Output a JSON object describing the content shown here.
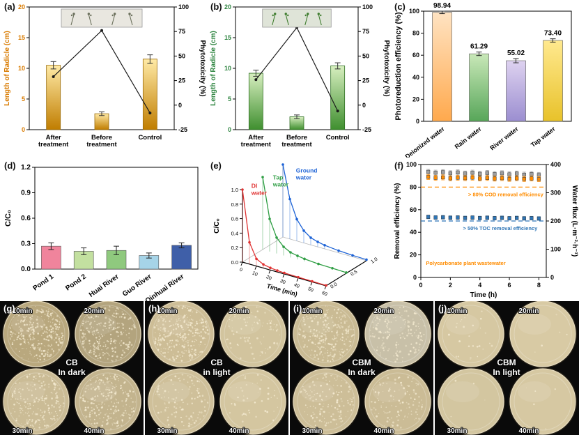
{
  "chart_data": [
    {
      "id": "a",
      "label": "(a)",
      "type": "bar+line",
      "left_axis": {
        "title": "Length of Radicle (cm)",
        "color": "#d97b00",
        "min": 0,
        "max": 20,
        "ticks": [
          "0",
          "5",
          "10",
          "15",
          "20"
        ]
      },
      "right_axis": {
        "title": "Phytotoxicity (%)",
        "color": "#000000",
        "min": -25,
        "max": 100,
        "ticks": [
          "-25",
          "0",
          "25",
          "50",
          "75",
          "100"
        ]
      },
      "categories": [
        "After treatment",
        "Before treatment",
        "Control"
      ],
      "bars": {
        "values": [
          10.5,
          2.6,
          11.5
        ],
        "errors": [
          0.6,
          0.3,
          0.7
        ],
        "color_top": "#ffeaa6",
        "color_bottom": "#c07d00",
        "edge": "#9a6a08"
      },
      "line": {
        "name": "Phytotoxicity",
        "values": [
          29,
          76,
          -8
        ],
        "color": "#1a1a1a"
      },
      "inset": {
        "bg": "#e9e7e0",
        "plant_color": "#6b705c"
      }
    },
    {
      "id": "b",
      "label": "(b)",
      "type": "bar+line",
      "left_axis": {
        "title": "Length of Radicle (cm)",
        "color": "#2e8540",
        "min": 0,
        "max": 20,
        "ticks": [
          "0",
          "5",
          "10",
          "15",
          "20"
        ]
      },
      "right_axis": {
        "title": "Phytotoxicity (%)",
        "color": "#000000",
        "min": -25,
        "max": 100,
        "ticks": [
          "-25",
          "0",
          "25",
          "50",
          "75",
          "100"
        ]
      },
      "categories": [
        "After treatment",
        "Before treatment",
        "Control"
      ],
      "bars": {
        "values": [
          9.2,
          2.1,
          10.4
        ],
        "errors": [
          0.5,
          0.3,
          0.5
        ],
        "color_top": "#d8efc0",
        "color_bottom": "#3f8f2f",
        "edge": "#2e6e22"
      },
      "line": {
        "name": "Phytotoxicity",
        "values": [
          26,
          79,
          -6
        ],
        "color": "#1a1a1a"
      },
      "inset": {
        "bg": "#dfe4d8",
        "plant_color": "#3f7d2f"
      }
    },
    {
      "id": "c",
      "label": "(c)",
      "type": "bar",
      "y_axis": {
        "title": "Photoreduction efficiency (%)",
        "min": 0,
        "max": 100,
        "ticks": [
          "0",
          "20",
          "40",
          "60",
          "80",
          "100"
        ]
      },
      "categories": [
        "Deionized water",
        "Rain water",
        "River water",
        "Tap water"
      ],
      "values": [
        98.94,
        61.29,
        55.02,
        73.4
      ],
      "value_labels": [
        "98.94",
        "61.29",
        "55.02",
        "73.40"
      ],
      "errors": [
        1.2,
        1.6,
        1.9,
        1.5
      ],
      "bar_colors": [
        {
          "top": "#ffe3c2",
          "bottom": "#ffa94d"
        },
        {
          "top": "#c9e8b8",
          "bottom": "#57a659"
        },
        {
          "top": "#ded2f0",
          "bottom": "#9b8ed0"
        },
        {
          "top": "#ffe98f",
          "bottom": "#e8c22a"
        }
      ]
    },
    {
      "id": "d",
      "label": "(d)",
      "type": "bar",
      "y_axis": {
        "title": "C/C₀",
        "min": 0,
        "max": 1.2,
        "ticks": [
          "0.0",
          "0.3",
          "0.6",
          "0.9",
          "1.2"
        ]
      },
      "categories": [
        "Pond 1",
        "Pond 2",
        "Huai River",
        "Guo River",
        "Qinhuai River"
      ],
      "values": [
        0.27,
        0.21,
        0.22,
        0.16,
        0.28
      ],
      "errors": [
        0.04,
        0.04,
        0.05,
        0.03,
        0.03
      ],
      "bar_colors": [
        "#f0849c",
        "#c3e0a0",
        "#8fc97e",
        "#a6d4e8",
        "#3f5fa8"
      ]
    },
    {
      "id": "e",
      "label": "(e)",
      "type": "line3d",
      "v_axis": {
        "title": "C/C₀",
        "min": 0,
        "max": 1,
        "ticks": [
          "0.0",
          "0.2",
          "0.4",
          "0.6",
          "0.8",
          "1.0"
        ]
      },
      "t_axis": {
        "title": "Time (min)",
        "min": 0,
        "max": 60,
        "ticks": [
          "0",
          "10",
          "20",
          "30",
          "40",
          "50",
          "60"
        ]
      },
      "depth_ticks": [
        "0.0",
        "0.5",
        "1.0"
      ],
      "series": [
        {
          "name": "DI water",
          "color": "#e03131",
          "depth": 0,
          "t": [
            0,
            5,
            10,
            15,
            20,
            25,
            30,
            40,
            50,
            60
          ],
          "v": [
            1.0,
            0.3,
            0.1,
            0.05,
            0.03,
            0.02,
            0.015,
            0.01,
            0.008,
            0.005
          ]
        },
        {
          "name": "Tap water",
          "color": "#2f9e44",
          "depth": 0.5,
          "t": [
            0,
            5,
            10,
            15,
            20,
            25,
            30,
            40,
            50,
            60
          ],
          "v": [
            1.0,
            0.45,
            0.22,
            0.12,
            0.07,
            0.05,
            0.035,
            0.02,
            0.015,
            0.01
          ]
        },
        {
          "name": "Ground water",
          "color": "#1c62d6",
          "depth": 1,
          "t": [
            0,
            5,
            10,
            15,
            20,
            25,
            30,
            40,
            50,
            60
          ],
          "v": [
            1.0,
            0.55,
            0.3,
            0.17,
            0.1,
            0.07,
            0.05,
            0.03,
            0.02,
            0.015
          ]
        }
      ]
    },
    {
      "id": "f",
      "label": "(f)",
      "type": "scatter",
      "left_axis": {
        "title": "Removal efficiency (%)",
        "min": 0,
        "max": 100,
        "ticks": [
          "0",
          "20",
          "40",
          "60",
          "80",
          "100"
        ]
      },
      "right_axis": {
        "title": "Water flux (L·m⁻²·h⁻¹)",
        "min": 0,
        "max": 400,
        "ticks": [
          "0",
          "100",
          "200",
          "300",
          "400"
        ]
      },
      "x_axis": {
        "title": "Time (h)",
        "min": 0,
        "max": 8.5,
        "ticks": [
          "0",
          "2",
          "4",
          "6",
          "8"
        ]
      },
      "reference_lines": [
        {
          "value": 80,
          "axis": "left",
          "color": "#ff8c00"
        },
        {
          "value": 50,
          "axis": "left",
          "color": "#2e75b6"
        }
      ],
      "annotations": [
        {
          "text": "> 80% COD removal efficiency",
          "color": "#ff8c00",
          "x": 8.3,
          "y": 72
        },
        {
          "text": "> 50% TOC removal efficiency",
          "color": "#2e75b6",
          "x": 7.9,
          "y": 42
        },
        {
          "text": "Polycarbonate plant wastewater",
          "color": "#ff8c00",
          "x": 0.35,
          "y": 11
        }
      ],
      "series": [
        {
          "name": "Water flux",
          "axis": "right",
          "marker": "square",
          "color": "#9e9e9e",
          "err": 9,
          "x": [
            0.5,
            1,
            1.5,
            2,
            2.5,
            3,
            3.5,
            4,
            4.5,
            5,
            5.5,
            6,
            6.5,
            7,
            7.5,
            8
          ],
          "y": [
            374,
            371,
            373,
            369,
            372,
            368,
            371,
            367,
            370,
            366,
            369,
            365,
            368,
            364,
            366,
            363
          ]
        },
        {
          "name": "COD removal",
          "axis": "left",
          "marker": "square",
          "color": "#ff8c00",
          "err": 2.2,
          "x": [
            0.5,
            1,
            1.5,
            2,
            2.5,
            3,
            3.5,
            4,
            4.5,
            5,
            5.5,
            6,
            6.5,
            7,
            7.5,
            8
          ],
          "y": [
            89,
            88.2,
            88.6,
            87.8,
            88.3,
            87.9,
            88.4,
            87.6,
            88.1,
            87.5,
            87.9,
            87.3,
            87.8,
            87.2,
            87.6,
            87.1
          ]
        },
        {
          "name": "TOC removal",
          "axis": "left",
          "marker": "square",
          "color": "#2e75b6",
          "err": 1.6,
          "x": [
            0.5,
            1,
            1.5,
            2,
            2.5,
            3,
            3.5,
            4,
            4.5,
            5,
            5.5,
            6,
            6.5,
            7,
            7.5,
            8
          ],
          "y": [
            53.6,
            53.1,
            53.3,
            52.9,
            53.1,
            52.7,
            53.0,
            52.6,
            52.9,
            52.5,
            52.8,
            52.4,
            52.7,
            52.3,
            52.5,
            52.2
          ]
        }
      ]
    }
  ],
  "photo_panels": [
    {
      "id": "g",
      "label": "(g)",
      "line1": "CB",
      "line2": "In dark",
      "dishes": [
        {
          "time": "10min",
          "density": 320,
          "tone": "#b9a87e"
        },
        {
          "time": "20min",
          "density": 260,
          "tone": "#b3a47e"
        },
        {
          "time": "30min",
          "density": 210,
          "tone": "#cbbc96"
        },
        {
          "time": "40min",
          "density": 240,
          "tone": "#c3b48e"
        }
      ]
    },
    {
      "id": "h",
      "label": "(h)",
      "line1": "CB",
      "line2": "in light",
      "dishes": [
        {
          "time": "10min",
          "density": 300,
          "tone": "#cdbd96"
        },
        {
          "time": "20min",
          "density": 90,
          "tone": "#d2c49e"
        },
        {
          "time": "30min",
          "density": 120,
          "tone": "#cfc09a"
        },
        {
          "time": "40min",
          "density": 45,
          "tone": "#d4c6a0"
        }
      ]
    },
    {
      "id": "i",
      "label": "(i)",
      "line1": "CBM",
      "line2": "In dark",
      "dishes": [
        {
          "time": "10min",
          "density": 280,
          "tone": "#cabb94"
        },
        {
          "time": "20min",
          "density": 180,
          "tone": "#c8c0a8"
        },
        {
          "time": "30min",
          "density": 150,
          "tone": "#cdbe98"
        },
        {
          "time": "40min",
          "density": 120,
          "tone": "#cbbc96"
        }
      ]
    },
    {
      "id": "j",
      "label": "(j)",
      "line1": "CBM",
      "line2": "In light",
      "dishes": [
        {
          "time": "10min",
          "density": 28,
          "tone": "#d6c8a2"
        },
        {
          "time": "20min",
          "density": 6,
          "tone": "#d8caa4"
        },
        {
          "time": "30min",
          "density": 4,
          "tone": "#d3c6a0"
        },
        {
          "time": "40min",
          "density": 5,
          "tone": "#d6c8a2"
        }
      ]
    }
  ]
}
